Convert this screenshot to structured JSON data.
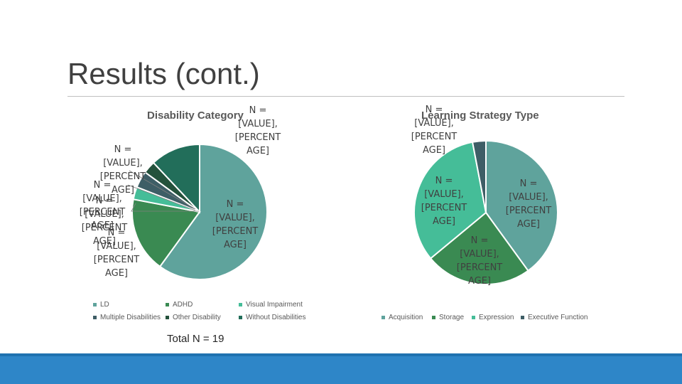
{
  "slide": {
    "title": "Results (cont.)",
    "total": "Total N = 19"
  },
  "colors": {
    "bottom_bar": "#2e86c8"
  },
  "chart_data": [
    {
      "type": "pie",
      "title": "Disability Category",
      "label_text": [
        "N = [VALUE], [PERCENT AGE]"
      ],
      "slices": [
        {
          "name": "LD",
          "value": 60,
          "color": "#5fa39c"
        },
        {
          "name": "ADHD",
          "value": 18,
          "color": "#3a8a52"
        },
        {
          "name": "Visual Impairment",
          "value": 3,
          "color": "#45bd98"
        },
        {
          "name": "Multiple Disabilities",
          "value": 4,
          "color": "#3e5e66"
        },
        {
          "name": "Other Disability",
          "value": 3,
          "color": "#24523c"
        },
        {
          "name": "Without Disabilities",
          "value": 12,
          "color": "#226e5a"
        }
      ],
      "legend": [
        "LD",
        "ADHD",
        "Visual Impairment",
        "Multiple Disabilities",
        "Other Disability",
        "Without Disabilities"
      ],
      "legend_position": "bottom"
    },
    {
      "type": "pie",
      "title": "Learning Strategy Type",
      "slices": [
        {
          "name": "Acquisition",
          "value": 40,
          "color": "#5fa39c"
        },
        {
          "name": "Storage",
          "value": 24,
          "color": "#3a8a52"
        },
        {
          "name": "Expression",
          "value": 33,
          "color": "#45bd98"
        },
        {
          "name": "Executive Function",
          "value": 3,
          "color": "#3e5e66"
        }
      ],
      "legend": [
        "Acquisition",
        "Storage",
        "Expression",
        "Executive Function"
      ],
      "legend_position": "bottom"
    }
  ]
}
